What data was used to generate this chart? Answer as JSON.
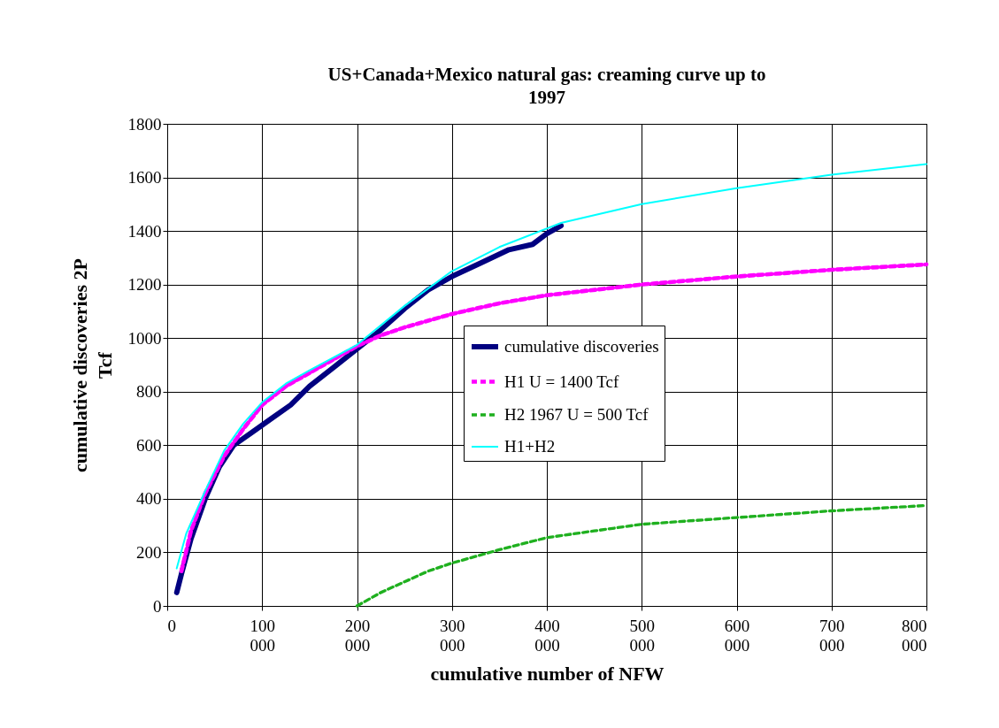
{
  "chart_data": {
    "type": "line",
    "title": "US+Canada+Mexico natural gas: creaming curve up to 1997",
    "xlabel": "cumulative number of NFW",
    "ylabel": "cumulative discoveries 2P Tcf",
    "xlim": [
      0,
      800000
    ],
    "ylim": [
      0,
      1800
    ],
    "xticks": [
      0,
      {
        "value": 100000,
        "label": "100 000"
      },
      {
        "value": 200000,
        "label": "200 000"
      },
      {
        "value": 300000,
        "label": "300 000"
      },
      {
        "value": 400000,
        "label": "400 000"
      },
      {
        "value": 500000,
        "label": "500 000"
      },
      {
        "value": 600000,
        "label": "600 000"
      },
      {
        "value": 700000,
        "label": "700 000"
      },
      {
        "value": 800000,
        "label": "800 000"
      }
    ],
    "yticks": [
      0,
      200,
      400,
      600,
      800,
      1000,
      1200,
      1400,
      1600,
      1800
    ],
    "grid": true,
    "legend": "center",
    "series": [
      {
        "name": "cumulative discoveries",
        "color": "#000080",
        "line_style": "solid",
        "x": [
          10000,
          15000,
          25000,
          40000,
          55000,
          70000,
          90000,
          110000,
          130000,
          150000,
          175000,
          200000,
          225000,
          250000,
          275000,
          300000,
          330000,
          360000,
          385000,
          400000,
          415000
        ],
        "values": [
          50,
          120,
          250,
          400,
          520,
          600,
          650,
          700,
          750,
          820,
          890,
          960,
          1030,
          1110,
          1180,
          1230,
          1280,
          1330,
          1350,
          1390,
          1420
        ]
      },
      {
        "name": "H1 U = 1400 Tcf",
        "color": "#ff00ff",
        "line_style": "dashed",
        "x": [
          15000,
          25000,
          40000,
          60000,
          80000,
          100000,
          125000,
          150000,
          175000,
          200000,
          225000,
          250000,
          300000,
          350000,
          400000,
          500000,
          600000,
          700000,
          800000
        ],
        "values": [
          130,
          280,
          420,
          560,
          660,
          750,
          820,
          870,
          920,
          970,
          1010,
          1040,
          1090,
          1130,
          1160,
          1200,
          1230,
          1255,
          1275
        ]
      },
      {
        "name": "H2 1967 U = 500 Tcf",
        "color": "#1fb01f",
        "line_style": "dashed",
        "x": [
          200000,
          225000,
          250000,
          275000,
          300000,
          350000,
          400000,
          450000,
          500000,
          600000,
          700000,
          800000
        ],
        "values": [
          0,
          50,
          90,
          130,
          160,
          210,
          255,
          280,
          305,
          330,
          355,
          375
        ]
      },
      {
        "name": "H1+H2",
        "color": "#00ffff",
        "line_style": "solid",
        "x": [
          10000,
          20000,
          40000,
          60000,
          80000,
          100000,
          125000,
          150000,
          200000,
          250000,
          300000,
          350000,
          415000,
          500000,
          600000,
          700000,
          800000
        ],
        "values": [
          140,
          270,
          430,
          580,
          680,
          760,
          830,
          880,
          975,
          1120,
          1250,
          1340,
          1430,
          1500,
          1560,
          1610,
          1650
        ]
      }
    ]
  }
}
